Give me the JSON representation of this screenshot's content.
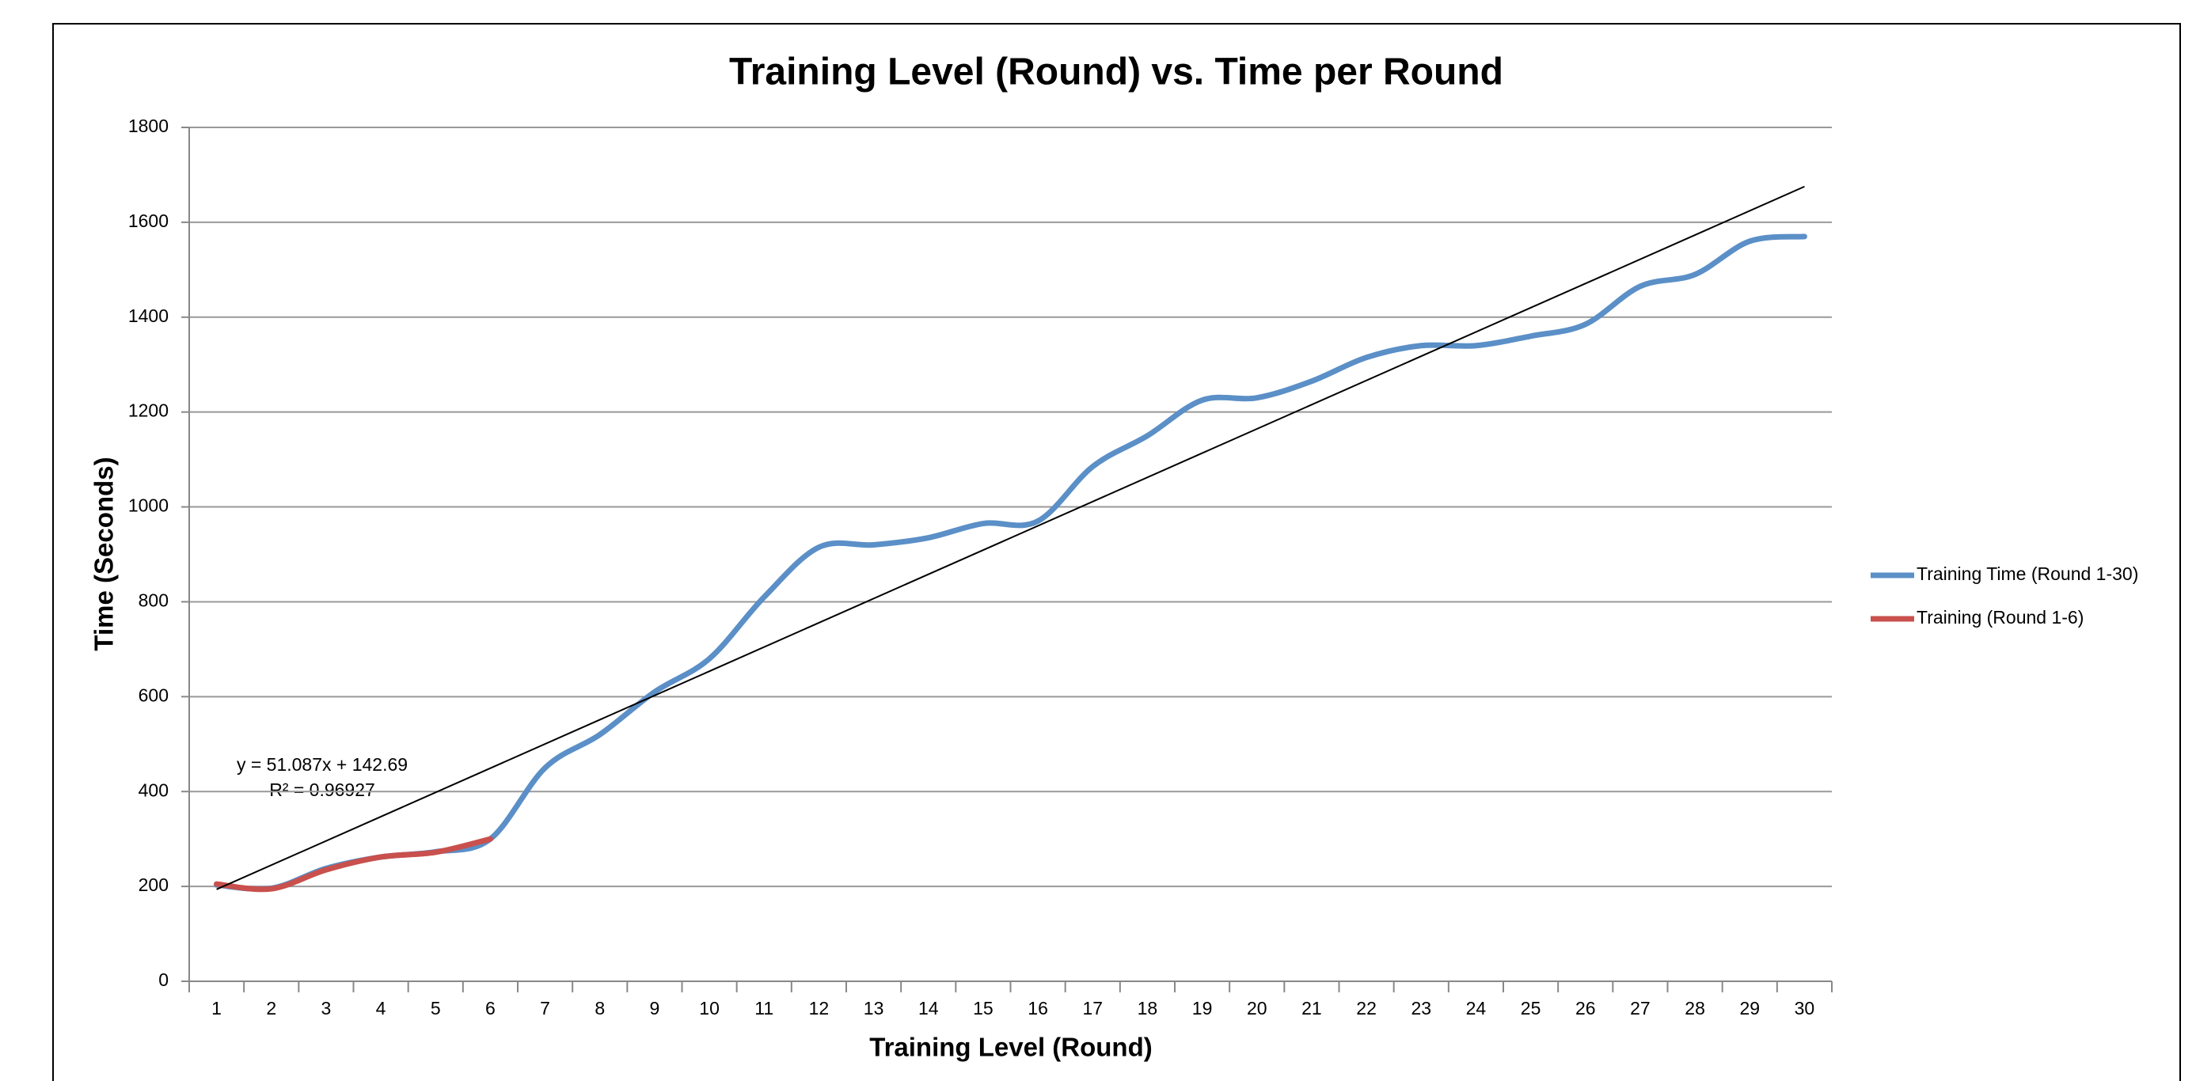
{
  "chart_data": {
    "type": "line",
    "title": "Training Level (Round) vs. Time per Round",
    "x_label": "Training Level (Round)",
    "y_label": "Time (Seconds)",
    "categories": [
      "1",
      "2",
      "3",
      "4",
      "5",
      "6",
      "7",
      "8",
      "9",
      "10",
      "11",
      "12",
      "13",
      "14",
      "15",
      "16",
      "17",
      "18",
      "19",
      "20",
      "21",
      "22",
      "23",
      "24",
      "25",
      "26",
      "27",
      "28",
      "29",
      "30"
    ],
    "series": [
      {
        "name": "Training Time (Round 1-30)",
        "color": "#5b8fc7",
        "values": [
          203,
          196,
          238,
          262,
          273,
          300,
          450,
          520,
          610,
          680,
          810,
          915,
          920,
          935,
          965,
          970,
          1085,
          1150,
          1225,
          1230,
          1265,
          1315,
          1340,
          1340,
          1360,
          1385,
          1465,
          1490,
          1560,
          1570
        ]
      },
      {
        "name": "Training (Round 1-6)",
        "color": "#c9504d",
        "values": [
          205,
          195,
          235,
          262,
          272,
          300,
          null,
          null,
          null,
          null,
          null,
          null,
          null,
          null,
          null,
          null,
          null,
          null,
          null,
          null,
          null,
          null,
          null,
          null,
          null,
          null,
          null,
          null,
          null,
          null
        ]
      }
    ],
    "trendline": {
      "equation": "y = 51.087x + 142.69",
      "r_squared": "R² = 0.96927",
      "slope": 51.087,
      "intercept": 142.69,
      "color": "#000000"
    },
    "ylim": [
      0,
      1800
    ],
    "yticks": [
      0,
      200,
      400,
      600,
      800,
      1000,
      1200,
      1400,
      1600,
      1800
    ],
    "grid": true,
    "legend": "right"
  }
}
